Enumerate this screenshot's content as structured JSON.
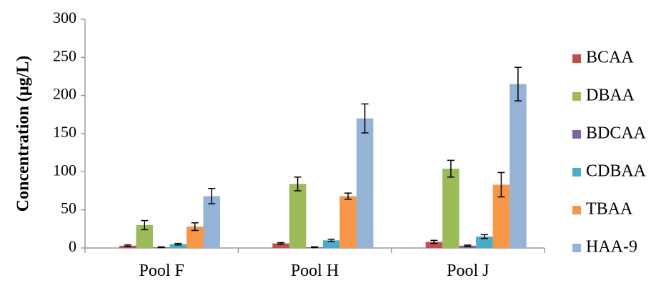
{
  "chart_data": {
    "type": "bar",
    "ylabel": "Concentration (µg/L)",
    "ylim": [
      0,
      300
    ],
    "yticks": [
      0,
      50,
      100,
      150,
      200,
      250,
      300
    ],
    "grid": false,
    "legend_position": "right",
    "categories": [
      "Pool F",
      "Pool H",
      "Pool J"
    ],
    "series": [
      {
        "name": "BCAA",
        "color": "#c0504d",
        "values": [
          3,
          6,
          8
        ],
        "errors": [
          1,
          1,
          2
        ]
      },
      {
        "name": "DBAA",
        "color": "#9bbb59",
        "values": [
          30,
          84,
          104
        ],
        "errors": [
          6,
          9,
          11
        ]
      },
      {
        "name": "BDCAA",
        "color": "#8064a2",
        "values": [
          1,
          1,
          3
        ],
        "errors": [
          0.5,
          0.5,
          0.8
        ]
      },
      {
        "name": "CDBAA",
        "color": "#4bacc6",
        "values": [
          5,
          10,
          15
        ],
        "errors": [
          1,
          1.5,
          2.5
        ]
      },
      {
        "name": "TBAA",
        "color": "#f79646",
        "values": [
          28,
          68,
          83
        ],
        "errors": [
          5,
          4,
          16
        ]
      },
      {
        "name": "HAA-9",
        "color": "#95b3d7",
        "values": [
          68,
          170,
          215
        ],
        "errors": [
          10,
          19,
          22
        ]
      }
    ]
  }
}
